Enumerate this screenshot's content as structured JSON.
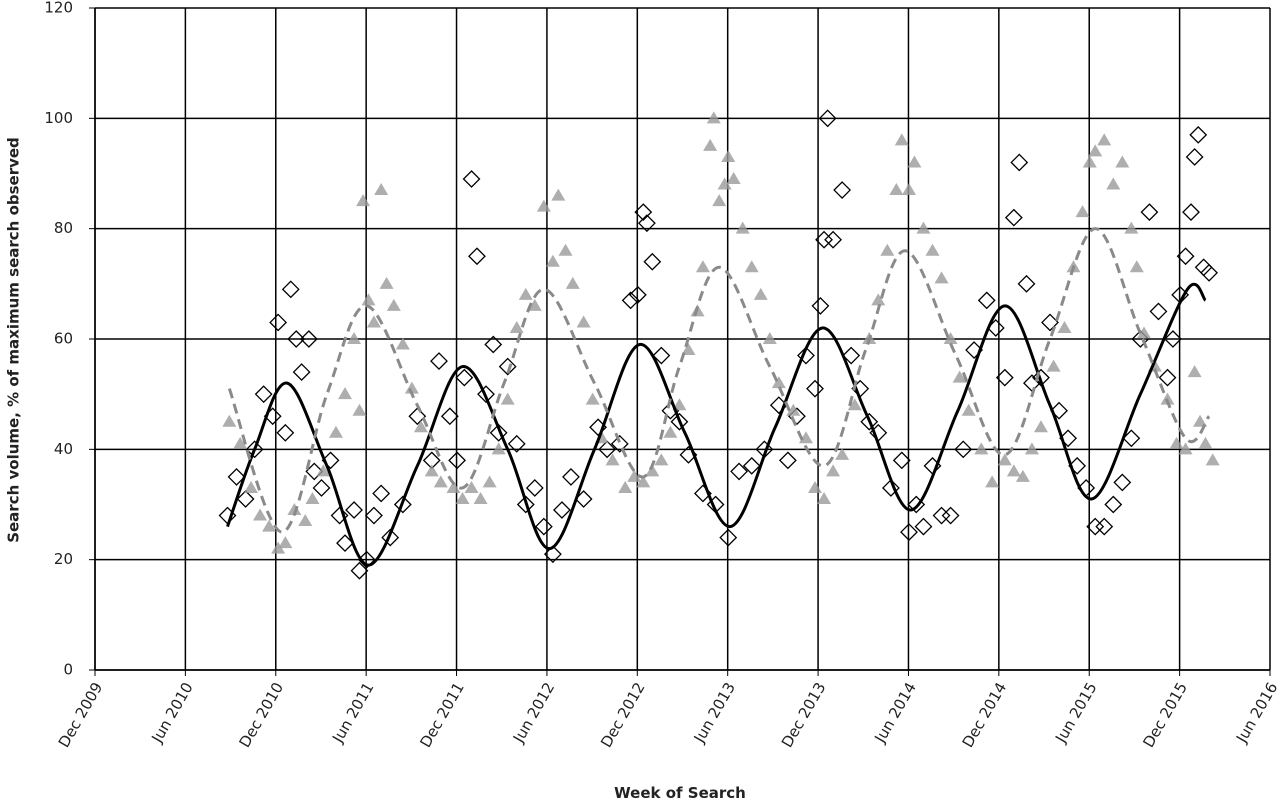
{
  "chart_data": {
    "type": "scatter",
    "xlabel": "Week of Search",
    "ylabel": "Search volume, % of maximum search observed",
    "xlim": [
      2009.917,
      2016.417
    ],
    "xticks": [
      {
        "value": 2009.917,
        "label": "Dec 2009"
      },
      {
        "value": 2010.417,
        "label": "Jun 2010"
      },
      {
        "value": 2010.917,
        "label": "Dec 2010"
      },
      {
        "value": 2011.417,
        "label": "Jun 2011"
      },
      {
        "value": 2011.917,
        "label": "Dec 2011"
      },
      {
        "value": 2012.417,
        "label": "Jun 2012"
      },
      {
        "value": 2012.917,
        "label": "Dec 2012"
      },
      {
        "value": 2013.417,
        "label": "Jun 2013"
      },
      {
        "value": 2013.917,
        "label": "Dec 2013"
      },
      {
        "value": 2014.417,
        "label": "Jun 2014"
      },
      {
        "value": 2014.917,
        "label": "Dec 2014"
      },
      {
        "value": 2015.417,
        "label": "Jun 2015"
      },
      {
        "value": 2015.917,
        "label": "Dec 2015"
      },
      {
        "value": 2016.417,
        "label": "Jun 2016"
      }
    ],
    "ylim": [
      0,
      120
    ],
    "yticks": [
      0,
      20,
      40,
      60,
      80,
      100,
      120
    ],
    "grid": true,
    "series": [
      {
        "marker": "diamond",
        "color": "#000000",
        "x": [
          2010.65,
          2010.7,
          2010.75,
          2010.8,
          2010.85,
          2010.9,
          2010.93,
          2010.97,
          2011.0,
          2011.03,
          2011.06,
          2011.1,
          2011.13,
          2011.17,
          2011.22,
          2011.27,
          2011.3,
          2011.35,
          2011.38,
          2011.42,
          2011.46,
          2011.5,
          2011.55,
          2011.62,
          2011.7,
          2011.78,
          2011.82,
          2011.88,
          2011.92,
          2011.96,
          2012.0,
          2012.03,
          2012.08,
          2012.12,
          2012.15,
          2012.2,
          2012.25,
          2012.3,
          2012.35,
          2012.4,
          2012.45,
          2012.5,
          2012.55,
          2012.62,
          2012.7,
          2012.75,
          2012.82,
          2012.88,
          2012.92,
          2012.95,
          2012.97,
          2013.0,
          2013.05,
          2013.1,
          2013.15,
          2013.2,
          2013.28,
          2013.35,
          2013.42,
          2013.48,
          2013.55,
          2013.62,
          2013.7,
          2013.75,
          2013.8,
          2013.85,
          2013.9,
          2013.93,
          2013.95,
          2013.97,
          2014.0,
          2014.05,
          2014.1,
          2014.15,
          2014.2,
          2014.25,
          2014.32,
          2014.38,
          2014.42,
          2014.46,
          2014.5,
          2014.55,
          2014.6,
          2014.65,
          2014.72,
          2014.78,
          2014.85,
          2014.9,
          2014.95,
          2015.0,
          2015.03,
          2015.07,
          2015.1,
          2015.15,
          2015.2,
          2015.25,
          2015.3,
          2015.35,
          2015.4,
          2015.45,
          2015.5,
          2015.55,
          2015.6,
          2015.65,
          2015.7,
          2015.75,
          2015.8,
          2015.85,
          2015.88,
          2015.92,
          2015.95,
          2015.98,
          2016.0,
          2016.02,
          2016.05,
          2016.08
        ],
        "values": [
          28,
          35,
          31,
          40,
          50,
          46,
          63,
          43,
          69,
          60,
          54,
          60,
          36,
          33,
          38,
          28,
          23,
          29,
          18,
          20,
          28,
          32,
          24,
          30,
          46,
          38,
          56,
          46,
          38,
          53,
          89,
          75,
          50,
          59,
          43,
          55,
          41,
          30,
          33,
          26,
          21,
          29,
          35,
          31,
          44,
          40,
          41,
          67,
          68,
          83,
          81,
          74,
          57,
          47,
          45,
          39,
          32,
          30,
          24,
          36,
          37,
          40,
          48,
          38,
          46,
          57,
          51,
          66,
          78,
          100,
          78,
          87,
          57,
          51,
          45,
          43,
          33,
          38,
          25,
          30,
          26,
          37,
          28,
          28,
          40,
          58,
          67,
          62,
          53,
          82,
          92,
          70,
          52,
          53,
          63,
          47,
          42,
          37,
          33,
          26,
          26,
          30,
          34,
          42,
          60,
          83,
          65,
          53,
          60,
          68,
          75,
          83,
          93,
          97,
          73,
          72
        ]
      },
      {
        "marker": "triangle",
        "color": "#9a9a9a",
        "x": [
          2010.66,
          2010.72,
          2010.78,
          2010.83,
          2010.88,
          2010.93,
          2010.97,
          2011.02,
          2011.08,
          2011.12,
          2011.18,
          2011.25,
          2011.3,
          2011.35,
          2011.38,
          2011.4,
          2011.43,
          2011.46,
          2011.5,
          2011.53,
          2011.57,
          2011.62,
          2011.67,
          2011.72,
          2011.78,
          2011.83,
          2011.9,
          2011.95,
          2012.0,
          2012.05,
          2012.1,
          2012.15,
          2012.2,
          2012.25,
          2012.3,
          2012.35,
          2012.4,
          2012.45,
          2012.48,
          2012.52,
          2012.56,
          2012.62,
          2012.67,
          2012.72,
          2012.78,
          2012.85,
          2012.9,
          2012.95,
          2013.0,
          2013.05,
          2013.1,
          2013.15,
          2013.2,
          2013.25,
          2013.28,
          2013.32,
          2013.34,
          2013.37,
          2013.4,
          2013.42,
          2013.45,
          2013.5,
          2013.55,
          2013.6,
          2013.65,
          2013.7,
          2013.78,
          2013.85,
          2013.9,
          2013.95,
          2014.0,
          2014.05,
          2014.12,
          2014.2,
          2014.25,
          2014.3,
          2014.35,
          2014.38,
          2014.42,
          2014.45,
          2014.5,
          2014.55,
          2014.6,
          2014.65,
          2014.7,
          2014.75,
          2014.82,
          2014.88,
          2014.95,
          2015.0,
          2015.05,
          2015.1,
          2015.15,
          2015.22,
          2015.28,
          2015.33,
          2015.38,
          2015.42,
          2015.45,
          2015.5,
          2015.55,
          2015.6,
          2015.65,
          2015.68,
          2015.72,
          2015.78,
          2015.85,
          2015.9,
          2015.95,
          2016.0,
          2016.03,
          2016.06,
          2016.1
        ],
        "values": [
          45,
          41,
          33,
          28,
          26,
          22,
          23,
          29,
          27,
          31,
          36,
          43,
          50,
          60,
          47,
          85,
          67,
          63,
          87,
          70,
          66,
          59,
          51,
          44,
          36,
          34,
          33,
          31,
          33,
          31,
          34,
          40,
          49,
          62,
          68,
          66,
          84,
          74,
          86,
          76,
          70,
          63,
          49,
          42,
          38,
          33,
          35,
          34,
          36,
          38,
          43,
          48,
          58,
          65,
          73,
          95,
          100,
          85,
          88,
          93,
          89,
          80,
          73,
          68,
          60,
          52,
          47,
          42,
          33,
          31,
          36,
          39,
          48,
          60,
          67,
          76,
          87,
          96,
          87,
          92,
          80,
          76,
          71,
          60,
          53,
          47,
          40,
          34,
          38,
          36,
          35,
          40,
          44,
          55,
          62,
          73,
          83,
          92,
          94,
          96,
          88,
          92,
          80,
          73,
          61,
          55,
          49,
          41,
          40,
          54,
          45,
          41,
          38
        ]
      },
      {
        "line": "solid",
        "color": "#000000",
        "x": [
          2010.65,
          2010.8,
          2010.98,
          2011.2,
          2011.43,
          2011.7,
          2011.95,
          2012.2,
          2012.43,
          2012.68,
          2012.93,
          2013.18,
          2013.43,
          2013.68,
          2013.94,
          2014.19,
          2014.43,
          2014.69,
          2014.95,
          2015.2,
          2015.43,
          2015.7,
          2015.96,
          2016.06
        ],
        "values": [
          26,
          40,
          52,
          37,
          19,
          37,
          55,
          40,
          22,
          40,
          59,
          43,
          26,
          44,
          62,
          46,
          29,
          47,
          66,
          48,
          31,
          50,
          69,
          67
        ]
      },
      {
        "line": "dashed",
        "color": "#8a8a8a",
        "x": [
          2010.66,
          2010.95,
          2011.2,
          2011.42,
          2011.7,
          2011.95,
          2012.18,
          2012.4,
          2012.68,
          2012.95,
          2013.15,
          2013.37,
          2013.65,
          2013.95,
          2014.18,
          2014.4,
          2014.68,
          2014.95,
          2015.2,
          2015.45,
          2015.7,
          2015.95,
          2016.08
        ],
        "values": [
          51,
          25,
          50,
          66,
          48,
          33,
          52,
          69,
          52,
          35,
          55,
          73,
          55,
          37,
          58,
          76,
          57,
          39,
          60,
          80,
          61,
          42,
          46
        ]
      }
    ]
  }
}
